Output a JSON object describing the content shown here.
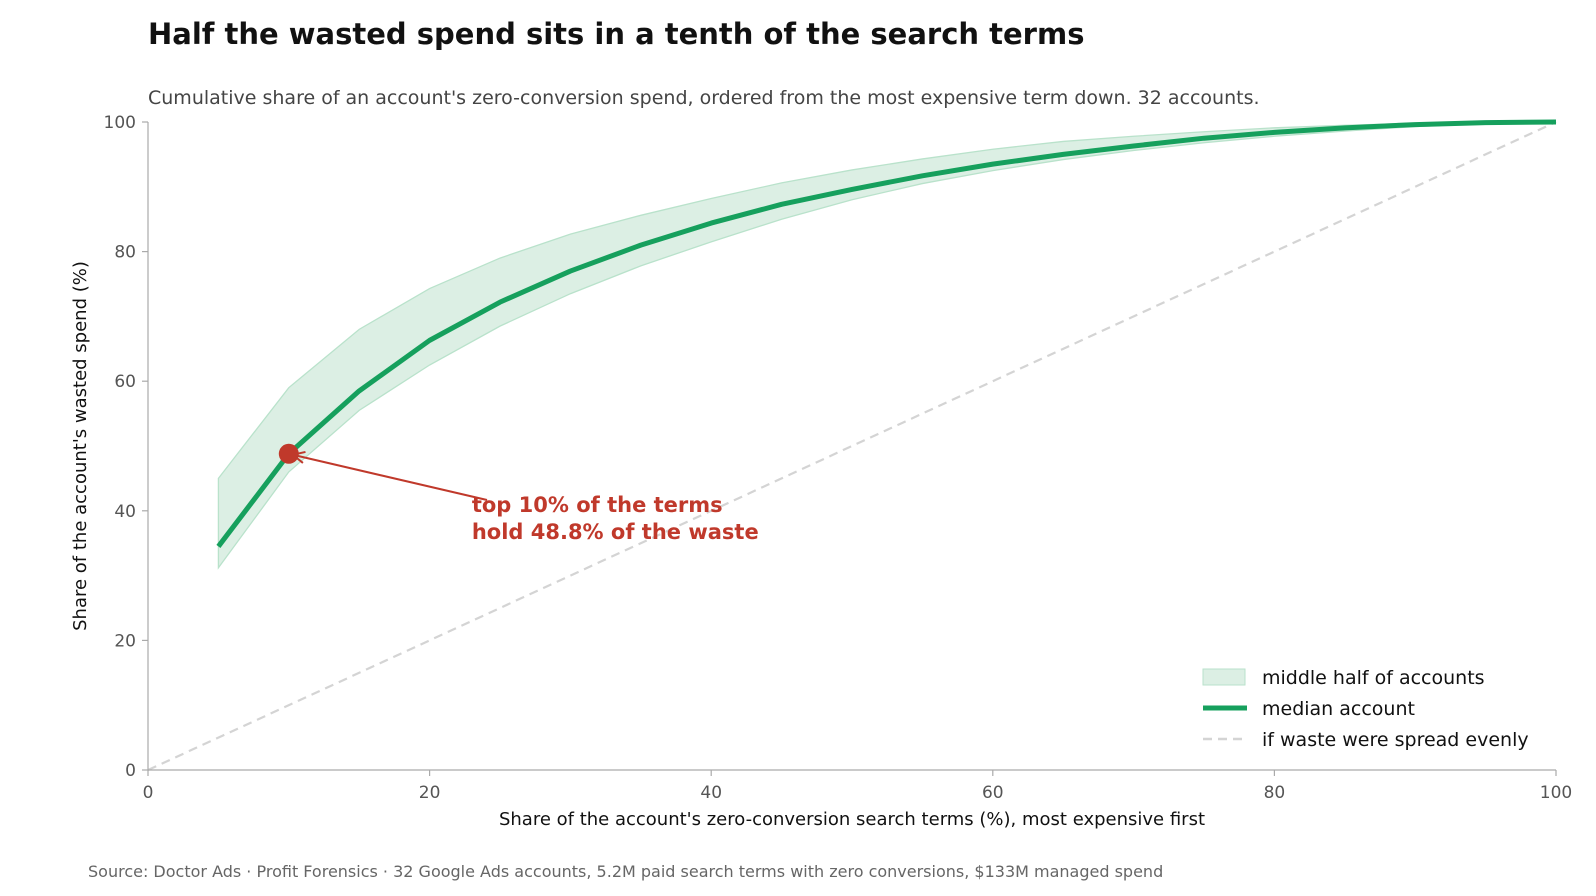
{
  "chart_data": {
    "type": "line",
    "title": "Half the wasted spend sits in a tenth of the search terms",
    "subtitle": "Cumulative share of an account's zero-conversion spend, ordered from the most expensive term down. 32 accounts.",
    "xlabel": "Share of the account's zero-conversion search terms (%), most expensive first",
    "ylabel": "Share of the account's wasted spend (%)",
    "xlim": [
      0,
      100
    ],
    "ylim": [
      0,
      100
    ],
    "xticks": [
      0,
      20,
      40,
      60,
      80,
      100
    ],
    "yticks": [
      0,
      20,
      40,
      60,
      80,
      100
    ],
    "grid": false,
    "legend_position": "bottom-right",
    "colors": {
      "median": "#16a05d",
      "band_fill": "#dcefe4",
      "band_edge": "#b9e2cb",
      "reference": "#d4d4d4",
      "annotation": "#c0392b",
      "axis": "#aaaaaa"
    },
    "x": [
      5,
      10,
      15,
      20,
      25,
      30,
      35,
      40,
      45,
      50,
      55,
      60,
      65,
      70,
      75,
      80,
      85,
      90,
      95,
      100
    ],
    "series": [
      {
        "key": "band",
        "name": "middle half of accounts",
        "style": "band",
        "lower": [
          31.2,
          46.0,
          55.5,
          62.5,
          68.5,
          73.5,
          77.8,
          81.5,
          85.0,
          88.0,
          90.5,
          92.5,
          94.2,
          95.6,
          96.8,
          97.8,
          98.6,
          99.3,
          99.8,
          100
        ],
        "upper": [
          45.0,
          59.0,
          68.0,
          74.3,
          79.0,
          82.7,
          85.6,
          88.2,
          90.6,
          92.6,
          94.3,
          95.8,
          97.0,
          97.8,
          98.5,
          99.1,
          99.5,
          99.8,
          99.95,
          100
        ]
      },
      {
        "key": "median",
        "name": "median account",
        "style": "line",
        "values": [
          34.5,
          48.8,
          58.5,
          66.3,
          72.2,
          77.0,
          81.0,
          84.4,
          87.3,
          89.6,
          91.7,
          93.5,
          95.0,
          96.3,
          97.5,
          98.4,
          99.1,
          99.6,
          99.9,
          100
        ]
      },
      {
        "key": "reference",
        "name": "if waste were spread evenly",
        "style": "dashed",
        "x": [
          0,
          100
        ],
        "values": [
          0,
          100
        ]
      }
    ],
    "annotation": {
      "x": 10,
      "y": 48.8,
      "text_lines": [
        "top 10% of the terms",
        "hold 48.8% of the waste"
      ],
      "text_x": 23,
      "text_y": 39.8
    },
    "source": "Source: Doctor Ads · Profit Forensics · 32 Google Ads accounts, 5.2M paid search terms with zero conversions, $133M managed spend"
  }
}
